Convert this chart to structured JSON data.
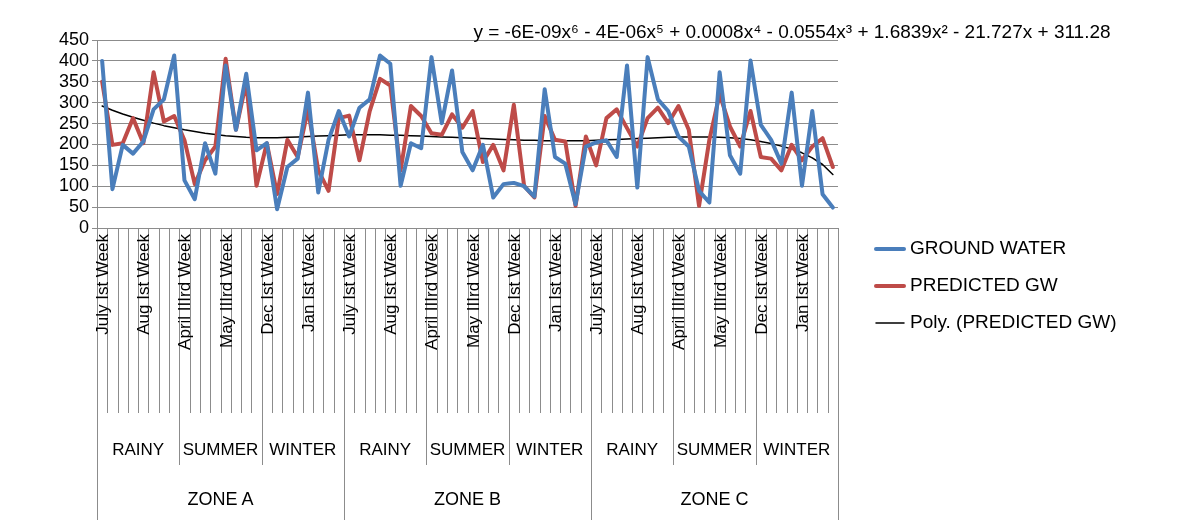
{
  "chart_data": {
    "type": "line",
    "categories": [
      "July Ist Week",
      null,
      null,
      null,
      "Aug Ist Week",
      null,
      null,
      null,
      "April IIIrd Week",
      null,
      null,
      null,
      "May IIIrd Week",
      null,
      null,
      null,
      "Dec Ist Week",
      null,
      null,
      null,
      "Jan Ist Week",
      null,
      null,
      null,
      "July Ist Week",
      null,
      null,
      null,
      "Aug Ist Week",
      null,
      null,
      null,
      "April IIIrd Week",
      null,
      null,
      null,
      "May IIIrd Week",
      null,
      null,
      null,
      "Dec Ist Week",
      null,
      null,
      null,
      "Jan Ist Week",
      null,
      null,
      null,
      "July Ist Week",
      null,
      null,
      null,
      "Aug Ist Week",
      null,
      null,
      null,
      "April IIIrd Week",
      null,
      null,
      null,
      "May IIIrd Week",
      null,
      null,
      null,
      "Dec Ist Week",
      null,
      null,
      null,
      "Jan Ist Week",
      null,
      null,
      null
    ],
    "series": [
      {
        "name": "GROUND WATER",
        "color": "#4a7ebb",
        "values": [
          400,
          93,
          199,
          178,
          207,
          284,
          308,
          413,
          114,
          69,
          203,
          130,
          389,
          235,
          369,
          186,
          203,
          45,
          146,
          166,
          324,
          85,
          211,
          280,
          219,
          288,
          308,
          413,
          393,
          101,
          203,
          191,
          409,
          251,
          377,
          182,
          138,
          199,
          73,
          105,
          108,
          100,
          75,
          332,
          170,
          154,
          57,
          195,
          205,
          210,
          170,
          389,
          97,
          409,
          308,
          280,
          219,
          195,
          89,
          61,
          373,
          174,
          130,
          401,
          247,
          211,
          154,
          324,
          101,
          280,
          81,
          49
        ]
      },
      {
        "name": "PREDICTED GW",
        "color": "#be4b48",
        "values": [
          350,
          199,
          203,
          263,
          203,
          373,
          255,
          268,
          210,
          105,
          162,
          195,
          405,
          235,
          349,
          101,
          203,
          81,
          211,
          170,
          284,
          138,
          89,
          263,
          269,
          162,
          280,
          357,
          341,
          138,
          292,
          268,
          227,
          223,
          272,
          240,
          280,
          158,
          199,
          138,
          295,
          101,
          73,
          268,
          211,
          207,
          53,
          219,
          150,
          263,
          284,
          239,
          195,
          263,
          288,
          251,
          292,
          235,
          53,
          211,
          320,
          243,
          195,
          280,
          170,
          166,
          138,
          199,
          162,
          195,
          215,
          146
        ]
      },
      {
        "name": "Poly. (PREDICTED GW)",
        "color": "#000000",
        "values": [
          292,
          282,
          273,
          265,
          258,
          251,
          245,
          240,
          235,
          231,
          227,
          224,
          221,
          219,
          217,
          216,
          216,
          216,
          217,
          218,
          219,
          220,
          221,
          222,
          223,
          223,
          223,
          223,
          222,
          222,
          221,
          220,
          219,
          218,
          217,
          216,
          215,
          214,
          213,
          212,
          211,
          210,
          210,
          209,
          209,
          209,
          209,
          209,
          210,
          211,
          212,
          213,
          214,
          215,
          216,
          217,
          218,
          218,
          218,
          218,
          217,
          216,
          214,
          211,
          207,
          202,
          196,
          189,
          180,
          168,
          152,
          128
        ]
      }
    ],
    "ylim": [
      0,
      450
    ],
    "yticks": [
      0,
      50,
      100,
      150,
      200,
      250,
      300,
      350,
      400,
      450
    ],
    "grid": "y",
    "legend": "right",
    "marker": "none",
    "annotations": [
      "y = -6E-09x⁶ - 4E-06x⁵ + 0.0008x⁴ - 0.0554x³ + 1.6839x² - 21.727x + 311.28",
      "RAINY",
      "SUMMER",
      "WINTER",
      "RAINY",
      "SUMMER",
      "WINTER",
      "RAINY",
      "SUMMER",
      "WINTER",
      "ZONE A",
      "ZONE B",
      "ZONE C"
    ]
  }
}
